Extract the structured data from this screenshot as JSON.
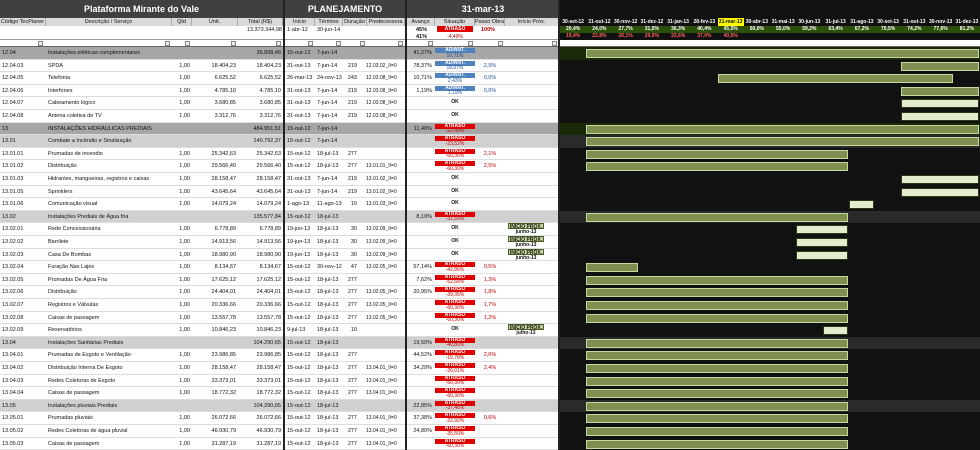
{
  "header": {
    "project_title": "Plataforma Mirante do Vale",
    "planning_title": "PLANEJAMENTO",
    "status_date": "31-mar-13"
  },
  "columns": {
    "code": "Código TecPlaner",
    "desc": "Descrição / Serviço",
    "qtd": "Qtd",
    "unit": "Unit.",
    "total": "Total (R$)",
    "start": "Início",
    "end": "Término",
    "dur": "Duração",
    "pred": "Predecessora",
    "progress": "Avanço",
    "situation": "Situação",
    "step": "Passo Obra",
    "next_start": "Início Próx."
  },
  "summary": {
    "total": "13.373.344,98",
    "start": "1-abr-12",
    "end": "30-jun-14",
    "progress": "45%",
    "situation": "ATRASO",
    "step": "100%",
    "progress2": "41%",
    "situation2": "-4,49%"
  },
  "timeline": {
    "months": [
      "30-set-12",
      "31-out-12",
      "30-nov-12",
      "31-dez-12",
      "31-jan-13",
      "28-fev-13",
      "31-mar-13",
      "30-abr-13",
      "31-mai-13",
      "30-jun-13",
      "31-jul-13",
      "31-ago-13",
      "30-set-13",
      "31-out-13",
      "30-nov-13",
      "31-dez-13"
    ],
    "planned": [
      "20,4%",
      "24,0%",
      "27,7%",
      "31,5%",
      "36,3%",
      "40,4%",
      "45,5%",
      "50,0%",
      "55,0%",
      "59,2%",
      "63,4%",
      "67,2%",
      "70,5%",
      "74,2%",
      "77,6%",
      "81,2%"
    ],
    "actual": [
      "19,4%",
      "22,8%",
      "26,1%",
      "29,0%",
      "33,6%",
      "37,0%",
      "40,5%",
      "",
      "",
      "",
      "",
      "",
      "",
      "",
      "",
      ""
    ]
  },
  "rows": [
    {
      "type": "grp",
      "code": "12.04",
      "desc": "Instalações elétricas complementares",
      "qtd": "",
      "unit": "",
      "total": "36.808,46",
      "start": "15-out-12",
      "end": "7-jun-14",
      "dur": "",
      "pred": "",
      "prog": "41,27%",
      "sit": "ADIANT.",
      "sitv": "10,71%",
      "step": "",
      "next": ""
    },
    {
      "type": "",
      "code": "12.04.03",
      "desc": "SPDA",
      "qtd": "1,00",
      "unit": "18.404,23",
      "total": "18.404,23",
      "start": "31-out-13",
      "end": "7-jun-14",
      "dur": "219",
      "pred": "12.03.02_II=0",
      "prog": "78,37%",
      "sit": "ADIANT.",
      "sitv": "18,07%",
      "step": "2,9%",
      "next": ""
    },
    {
      "type": "",
      "code": "12.04.05",
      "desc": "Telefonia",
      "qtd": "1,00",
      "unit": "6.625,52",
      "total": "6.625,52",
      "start": "26-mar-13",
      "end": "24-nov-13",
      "dur": "243",
      "pred": "12.03.08_II=0",
      "prog": "10,71%",
      "sit": "ADIANT.",
      "sitv": "2,43%",
      "step": "0,0%",
      "next": ""
    },
    {
      "type": "",
      "code": "12.04.06",
      "desc": "Interfones",
      "qtd": "1,00",
      "unit": "4.785,10",
      "total": "4.785,10",
      "start": "31-out-13",
      "end": "7-jun-14",
      "dur": "219",
      "pred": "12.03.08_II=0",
      "prog": "1,19%",
      "sit": "ADIANT.",
      "sitv": "1,19%",
      "step": "0,0%",
      "next": ""
    },
    {
      "type": "",
      "code": "12.04.07",
      "desc": "Cabeamento lógico",
      "qtd": "1,00",
      "unit": "3.680,85",
      "total": "3.680,85",
      "start": "31-out-13",
      "end": "7-jun-14",
      "dur": "219",
      "pred": "12.03.08_II=0",
      "prog": "",
      "sit": "OK",
      "sitv": "",
      "step": "",
      "next": ""
    },
    {
      "type": "",
      "code": "12.04.08",
      "desc": "Antena coletiva de TV",
      "qtd": "1,00",
      "unit": "3.312,76",
      "total": "3.312,76",
      "start": "31-out-13",
      "end": "7-jun-14",
      "dur": "219",
      "pred": "12.03.08_II=0",
      "prog": "",
      "sit": "OK",
      "sitv": "",
      "step": "",
      "next": ""
    },
    {
      "type": "grp",
      "code": "13",
      "desc": "INSTALAÇÕES HIDRÁULICAS PREDIAIS",
      "qtd": "",
      "unit": "",
      "total": "484.951,51",
      "start": "15-out-12",
      "end": "7-jun-14",
      "dur": "",
      "pred": "",
      "prog": "11,40%",
      "sit": "ATRASO",
      "sitv": "-22,49%",
      "step": "",
      "next": ""
    },
    {
      "type": "sub",
      "code": "13.01",
      "desc": "Combate a Incêndio e Sinalização",
      "qtd": "",
      "unit": "",
      "total": "140.792,37",
      "start": "15-out-12",
      "end": "7-jun-14",
      "dur": "",
      "pred": "",
      "prog": "",
      "sit": "ATRASO",
      "sitv": "-23,52%",
      "step": "",
      "next": ""
    },
    {
      "type": "",
      "code": "13.01.01",
      "desc": "Prumadas de incendio",
      "qtd": "1,00",
      "unit": "25.342,63",
      "total": "25.342,63",
      "start": "15-out-12",
      "end": "18-jul-13",
      "dur": "277",
      "pred": "",
      "prog": "",
      "sit": "ATRASO",
      "sitv": "-60,30%",
      "step": "2,1%",
      "next": ""
    },
    {
      "type": "",
      "code": "13.01.02",
      "desc": "Distribuição",
      "qtd": "1,00",
      "unit": "29.566,40",
      "total": "29.566,40",
      "start": "15-out-12",
      "end": "18-jul-13",
      "dur": "277",
      "pred": "13.01.01_II=0",
      "prog": "",
      "sit": "ATRASO",
      "sitv": "-60,30%",
      "step": "2,5%",
      "next": ""
    },
    {
      "type": "",
      "code": "13.01.03",
      "desc": "Hidrantes, mangueiras, registros e caixas",
      "qtd": "1,00",
      "unit": "28.158,47",
      "total": "28.158,47",
      "start": "31-out-13",
      "end": "7-jun-14",
      "dur": "219",
      "pred": "13.01.02_II=0",
      "prog": "",
      "sit": "OK",
      "sitv": "",
      "step": "",
      "next": ""
    },
    {
      "type": "",
      "code": "13.01.05",
      "desc": "Sprinklers",
      "qtd": "1,00",
      "unit": "43.645,64",
      "total": "43.645,64",
      "start": "31-out-13",
      "end": "7-jun-14",
      "dur": "219",
      "pred": "13.01.02_II=0",
      "prog": "",
      "sit": "OK",
      "sitv": "",
      "step": "",
      "next": ""
    },
    {
      "type": "",
      "code": "13.01.06",
      "desc": "Comunicação visual",
      "qtd": "1,00",
      "unit": "14.079,24",
      "total": "14.079,24",
      "start": "1-ago-13",
      "end": "11-ago-13",
      "dur": "10",
      "pred": "13.01.03_II=0",
      "prog": "",
      "sit": "OK",
      "sitv": "",
      "step": "",
      "next": ""
    },
    {
      "type": "sub",
      "code": "13.02",
      "desc": "Instalações Prediais de Água fria",
      "qtd": "",
      "unit": "",
      "total": "135.577,84",
      "start": "15-out-12",
      "end": "18-jul-13",
      "dur": "",
      "pred": "",
      "prog": "8,19%",
      "sit": "ATRASO",
      "sitv": "-31,59%",
      "step": "",
      "next": ""
    },
    {
      "type": "",
      "code": "13.02.01",
      "desc": "Rede Concessionária",
      "qtd": "1,00",
      "unit": "6.778,89",
      "total": "6.778,89",
      "start": "19-jun-13",
      "end": "18-jul-13",
      "dur": "30",
      "pred": "13.02.09_II=0",
      "prog": "",
      "sit": "OK",
      "sitv": "",
      "step": "",
      "next": "INÍCIO PRÓX.",
      "next2": "junho-13"
    },
    {
      "type": "",
      "code": "13.02.02",
      "desc": "Barrilete",
      "qtd": "1,00",
      "unit": "14.913,56",
      "total": "14.913,56",
      "start": "19-jun-13",
      "end": "18-jul-13",
      "dur": "30",
      "pred": "13.02.09_II=0",
      "prog": "",
      "sit": "OK",
      "sitv": "",
      "step": "",
      "next": "INÍCIO PRÓX.",
      "next2": "junho-13"
    },
    {
      "type": "",
      "code": "13.02.03",
      "desc": "Casa De Bombas",
      "qtd": "1,00",
      "unit": "18.980,90",
      "total": "18.980,90",
      "start": "19-jun-13",
      "end": "18-jul-13",
      "dur": "30",
      "pred": "13.02.09_II=0",
      "prog": "",
      "sit": "OK",
      "sitv": "",
      "step": "",
      "next": "INÍCIO PRÓX.",
      "next2": "junho-13"
    },
    {
      "type": "",
      "code": "13.02.04",
      "desc": "Furação Nas Lajes",
      "qtd": "1,00",
      "unit": "8.134,67",
      "total": "8.134,67",
      "start": "15-out-12",
      "end": "30-nov-12",
      "dur": "47",
      "pred": "13.02.05_II=0",
      "prog": "57,14%",
      "sit": "ATRASO",
      "sitv": "-42,86%",
      "step": "0,5%",
      "next": ""
    },
    {
      "type": "",
      "code": "13.02.05",
      "desc": "Prumadas De Água Fria",
      "qtd": "1,00",
      "unit": "17.625,12",
      "total": "17.625,12",
      "start": "15-out-12",
      "end": "18-jul-13",
      "dur": "277",
      "pred": "",
      "prog": "7,62%",
      "sit": "ATRASO",
      "sitv": "-52,68%",
      "step": "1,3%",
      "next": ""
    },
    {
      "type": "",
      "code": "13.02.06",
      "desc": "Distribuição",
      "qtd": "1,00",
      "unit": "24.404,01",
      "total": "24.404,01",
      "start": "15-out-12",
      "end": "18-jul-13",
      "dur": "277",
      "pred": "13.02.05_II=0",
      "prog": "20,95%",
      "sit": "ATRASO",
      "sitv": "-39,35%",
      "step": "1,8%",
      "next": ""
    },
    {
      "type": "",
      "code": "13.02.07",
      "desc": "Registros e Válvulas",
      "qtd": "1,00",
      "unit": "20.336,66",
      "total": "20.336,66",
      "start": "15-out-12",
      "end": "18-jul-13",
      "dur": "277",
      "pred": "13.02.05_II=0",
      "prog": "",
      "sit": "ATRASO",
      "sitv": "-60,30%",
      "step": "1,7%",
      "next": ""
    },
    {
      "type": "",
      "code": "13.02.08",
      "desc": "Caixas de passagem",
      "qtd": "1,00",
      "unit": "13.557,78",
      "total": "13.557,78",
      "start": "15-out-12",
      "end": "18-jul-13",
      "dur": "277",
      "pred": "13.02.05_II=0",
      "prog": "",
      "sit": "ATRASO",
      "sitv": "-60,30%",
      "step": "1,2%",
      "next": ""
    },
    {
      "type": "",
      "code": "13.02.09",
      "desc": "Reservatórios",
      "qtd": "1,00",
      "unit": "10.846,23",
      "total": "10.846,23",
      "start": "9-jul-13",
      "end": "18-jul-13",
      "dur": "10",
      "pred": "",
      "prog": "",
      "sit": "OK",
      "sitv": "",
      "step": "",
      "next": "INÍCIO PRÓX.",
      "next2": "julho-13"
    },
    {
      "type": "sub",
      "code": "13.04",
      "desc": "Instalações Sanitárias Prediais",
      "qtd": "",
      "unit": "",
      "total": "104.290,65",
      "start": "15-out-12",
      "end": "18-jul-13",
      "dur": "",
      "pred": "",
      "prog": "19,50%",
      "sit": "ATRASO",
      "sitv": "-40,80%",
      "step": "",
      "next": ""
    },
    {
      "type": "",
      "code": "13.04.01",
      "desc": "Prumadas de Esgoto e Ventilação",
      "qtd": "1,00",
      "unit": "23.986,85",
      "total": "23.986,85",
      "start": "15-out-12",
      "end": "18-jul-13",
      "dur": "277",
      "pred": "",
      "prog": "44,52%",
      "sit": "ATRASO",
      "sitv": "-15,78%",
      "step": "2,0%",
      "next": ""
    },
    {
      "type": "",
      "code": "13.04.02",
      "desc": "Distribuição Interna De Esgoto",
      "qtd": "1,00",
      "unit": "28.158,47",
      "total": "28.158,47",
      "start": "15-out-12",
      "end": "18-jul-13",
      "dur": "277",
      "pred": "13.04.01_II=0",
      "prog": "34,29%",
      "sit": "ATRASO",
      "sitv": "-26,01%",
      "step": "2,4%",
      "next": ""
    },
    {
      "type": "",
      "code": "13.04.03",
      "desc": "Redes Coletoras de Esgoto",
      "qtd": "1,00",
      "unit": "33.373,01",
      "total": "33.373,01",
      "start": "15-out-12",
      "end": "18-jul-13",
      "dur": "277",
      "pred": "13.04.01_II=0",
      "prog": "",
      "sit": "ATRASO",
      "sitv": "-60,30%",
      "step": "",
      "next": ""
    },
    {
      "type": "",
      "code": "13.04.04",
      "desc": "Caixas de passagem",
      "qtd": "1,00",
      "unit": "18.772,32",
      "total": "18.772,32",
      "start": "15-out-12",
      "end": "18-jul-13",
      "dur": "277",
      "pred": "13.04.01_II=0",
      "prog": "",
      "sit": "ATRASO",
      "sitv": "-60,30%",
      "step": "",
      "next": ""
    },
    {
      "type": "sub",
      "code": "13.05",
      "desc": "Instalações pluviais Prediais",
      "qtd": "",
      "unit": "",
      "total": "104.290,65",
      "start": "15-out-12",
      "end": "18-jul-13",
      "dur": "",
      "pred": "",
      "prog": "22,85%",
      "sit": "ATRASO",
      "sitv": "-37,46%",
      "step": "",
      "next": ""
    },
    {
      "type": "",
      "code": "13.05.01",
      "desc": "Prumadas pluviais",
      "qtd": "1,00",
      "unit": "26.072,66",
      "total": "26.072,66",
      "start": "15-out-12",
      "end": "18-jul-13",
      "dur": "277",
      "pred": "13.04.01_II=0",
      "prog": "37,38%",
      "sit": "ATRASO",
      "sitv": "-22,92%",
      "step": "0,6%",
      "next": ""
    },
    {
      "type": "",
      "code": "13.05.02",
      "desc": "Redes Coletoras de água pluvial",
      "qtd": "1,00",
      "unit": "46.930,79",
      "total": "46.930,79",
      "start": "15-out-12",
      "end": "18-jul-13",
      "dur": "277",
      "pred": "13.04.01_II=0",
      "prog": "24,80%",
      "sit": "ATRASO",
      "sitv": "-35,50%",
      "step": "",
      "next": ""
    },
    {
      "type": "",
      "code": "13.05.03",
      "desc": "Caixas de passagem",
      "qtd": "1,00",
      "unit": "31.287,19",
      "total": "31.287,19",
      "start": "15-out-12",
      "end": "18-jul-13",
      "dur": "277",
      "pred": "13.04.01_II=0",
      "prog": "",
      "sit": "ATRASO",
      "sitv": "-60,30%",
      "step": "",
      "next": ""
    }
  ],
  "colors": {
    "header_bg": "#404040",
    "atraso": "#e00000",
    "adiant": "#4f81bd",
    "timeline_bg": "#111111",
    "bar_dark": "#7f8f50",
    "bar_light": "#e4ecd0",
    "current_month": "#ffff00"
  }
}
